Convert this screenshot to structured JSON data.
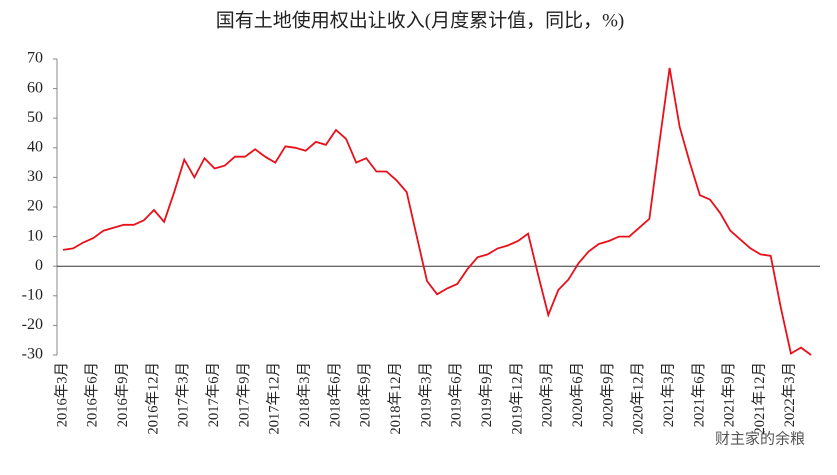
{
  "chart_data": {
    "type": "line",
    "title": "国有土地使用权出让收入(月度累计值，同比，%)",
    "watermark": "财主家的余粮",
    "categories": [
      "2016年3月",
      null,
      null,
      "2016年6月",
      null,
      null,
      "2016年9月",
      null,
      null,
      "2016年12月",
      null,
      null,
      "2017年3月",
      null,
      null,
      "2017年6月",
      null,
      null,
      "2017年9月",
      null,
      null,
      "2017年12月",
      null,
      null,
      "2018年3月",
      null,
      null,
      "2018年6月",
      null,
      null,
      "2018年9月",
      null,
      null,
      "2018年12月",
      null,
      null,
      "2019年3月",
      null,
      null,
      "2019年6月",
      null,
      null,
      "2019年9月",
      null,
      null,
      "2019年12月",
      null,
      null,
      "2020年3月",
      null,
      null,
      "2020年6月",
      null,
      null,
      "2020年9月",
      null,
      null,
      "2020年12月",
      null,
      null,
      "2021年3月",
      null,
      null,
      "2021年6月",
      null,
      null,
      "2021年9月",
      null,
      null,
      "2021年12月",
      null,
      null,
      "2022年3月",
      null,
      null
    ],
    "series": [
      {
        "name": "国有土地使用权出让收入",
        "color": "#e8101a",
        "values": [
          5.5,
          6,
          8,
          9.5,
          12,
          13,
          14,
          14,
          15.5,
          19,
          15,
          25,
          36,
          30,
          36.5,
          33,
          34,
          37,
          37,
          39.5,
          37,
          35,
          40.5,
          40,
          39,
          42,
          41,
          46,
          43,
          35,
          36.5,
          32,
          32,
          29,
          25,
          10,
          -5,
          -9.5,
          -7.5,
          -6,
          -1,
          3,
          4,
          6,
          7,
          8.5,
          11,
          -3,
          -16.5,
          -8,
          -4.5,
          1,
          5,
          7.5,
          8.5,
          10,
          10,
          13,
          16,
          42,
          67,
          47,
          35,
          24,
          22.5,
          18,
          12,
          9,
          6,
          4,
          3.5,
          -14,
          -29.5,
          -27.5,
          -30
        ]
      }
    ],
    "ylim": [
      -30,
      70
    ],
    "yticks": [
      -30,
      -20,
      -10,
      0,
      10,
      20,
      30,
      40,
      50,
      60,
      70
    ],
    "grid": false
  }
}
